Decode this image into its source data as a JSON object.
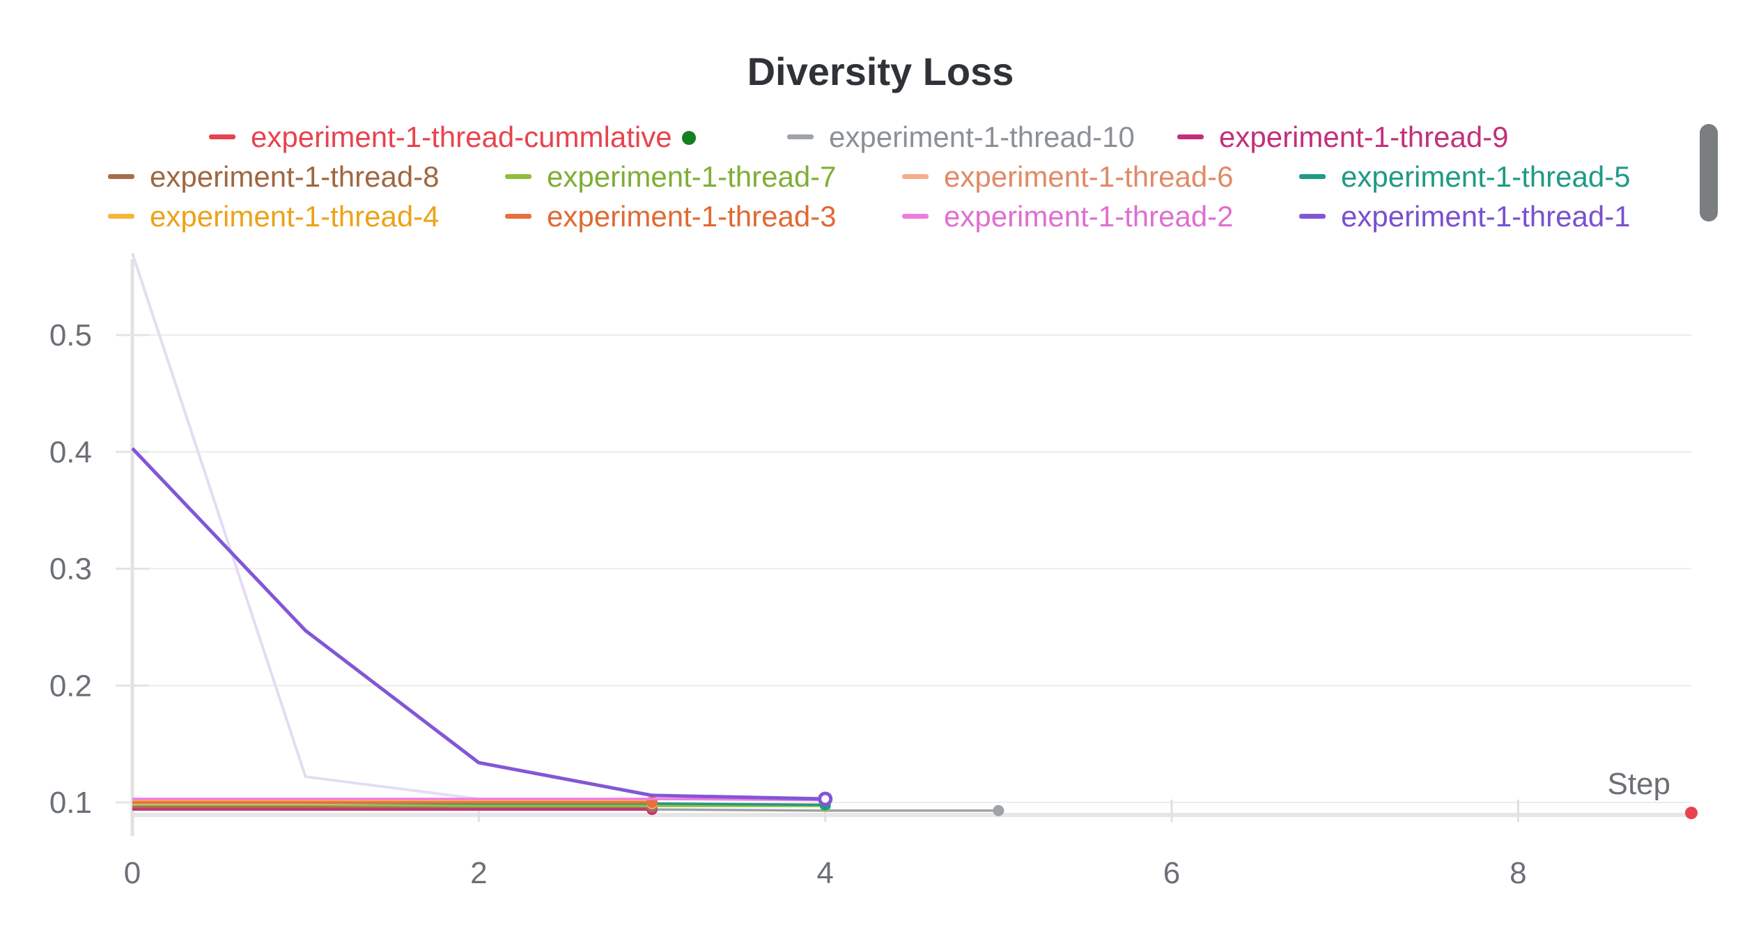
{
  "chart_data": {
    "type": "line",
    "title": "Diversity Loss",
    "xlabel": "Step",
    "ylabel": "",
    "xlim": [
      0,
      9
    ],
    "ylim": [
      0.09,
      0.57
    ],
    "x_ticks": [
      "0",
      "2",
      "4",
      "6",
      "8"
    ],
    "y_ticks": [
      "0.1",
      "0.2",
      "0.3",
      "0.4",
      "0.5"
    ],
    "grid": true,
    "legend_position": "top",
    "series": [
      {
        "name": "experiment-1-thread-cummlative",
        "color": "#e8434f",
        "x": [
          9
        ],
        "y": [
          0.091
        ]
      },
      {
        "name": "experiment-1-thread-10",
        "color": "#9ea3a8",
        "x": [
          0,
          1,
          2,
          3,
          4,
          5
        ],
        "y": [
          0.095,
          0.094,
          0.094,
          0.094,
          0.093,
          0.093
        ]
      },
      {
        "name": "experiment-1-thread-9",
        "color": "#c2307a",
        "x": [
          0,
          1,
          2,
          3
        ],
        "y": [
          0.094,
          0.094,
          0.094,
          0.094
        ]
      },
      {
        "name": "experiment-1-thread-8",
        "color": "#a86d4a",
        "x": [
          0,
          1,
          2,
          3
        ],
        "y": [
          0.096,
          0.096,
          0.096,
          0.096
        ]
      },
      {
        "name": "experiment-1-thread-7",
        "color": "#8fbe3f",
        "x": [
          0,
          1,
          2,
          3,
          4
        ],
        "y": [
          0.098,
          0.098,
          0.097,
          0.097,
          0.097
        ]
      },
      {
        "name": "experiment-1-thread-6",
        "color": "#f5ad8c",
        "x": [
          0,
          1,
          2,
          3
        ],
        "y": [
          0.099,
          0.099,
          0.099,
          0.099
        ]
      },
      {
        "name": "experiment-1-thread-5",
        "color": "#1f9a85",
        "x": [
          0,
          1,
          2,
          3,
          4
        ],
        "y": [
          0.1,
          0.1,
          0.099,
          0.099,
          0.098
        ]
      },
      {
        "name": "experiment-1-thread-4",
        "color": "#f6b43c",
        "x": [
          0,
          1,
          2,
          3
        ],
        "y": [
          0.101,
          0.101,
          0.101,
          0.101
        ]
      },
      {
        "name": "experiment-1-thread-3",
        "color": "#e8703f",
        "x": [
          0,
          1,
          2,
          3
        ],
        "y": [
          0.1,
          0.1,
          0.1,
          0.1
        ]
      },
      {
        "name": "experiment-1-thread-2",
        "color": "#ef7ddf",
        "x": [
          0,
          1,
          2,
          3,
          4
        ],
        "y": [
          0.103,
          0.103,
          0.103,
          0.103,
          0.102
        ]
      },
      {
        "name": "experiment-1-thread-1",
        "color": "#8257d6",
        "x": [
          0,
          1,
          2,
          3,
          4
        ],
        "y": [
          0.403,
          0.247,
          0.134,
          0.106,
          0.103
        ]
      }
    ],
    "faded_series": [
      {
        "color": "#e4dcf4",
        "x": [
          0,
          1,
          2
        ],
        "y": [
          0.57,
          0.122,
          0.103
        ]
      }
    ]
  }
}
